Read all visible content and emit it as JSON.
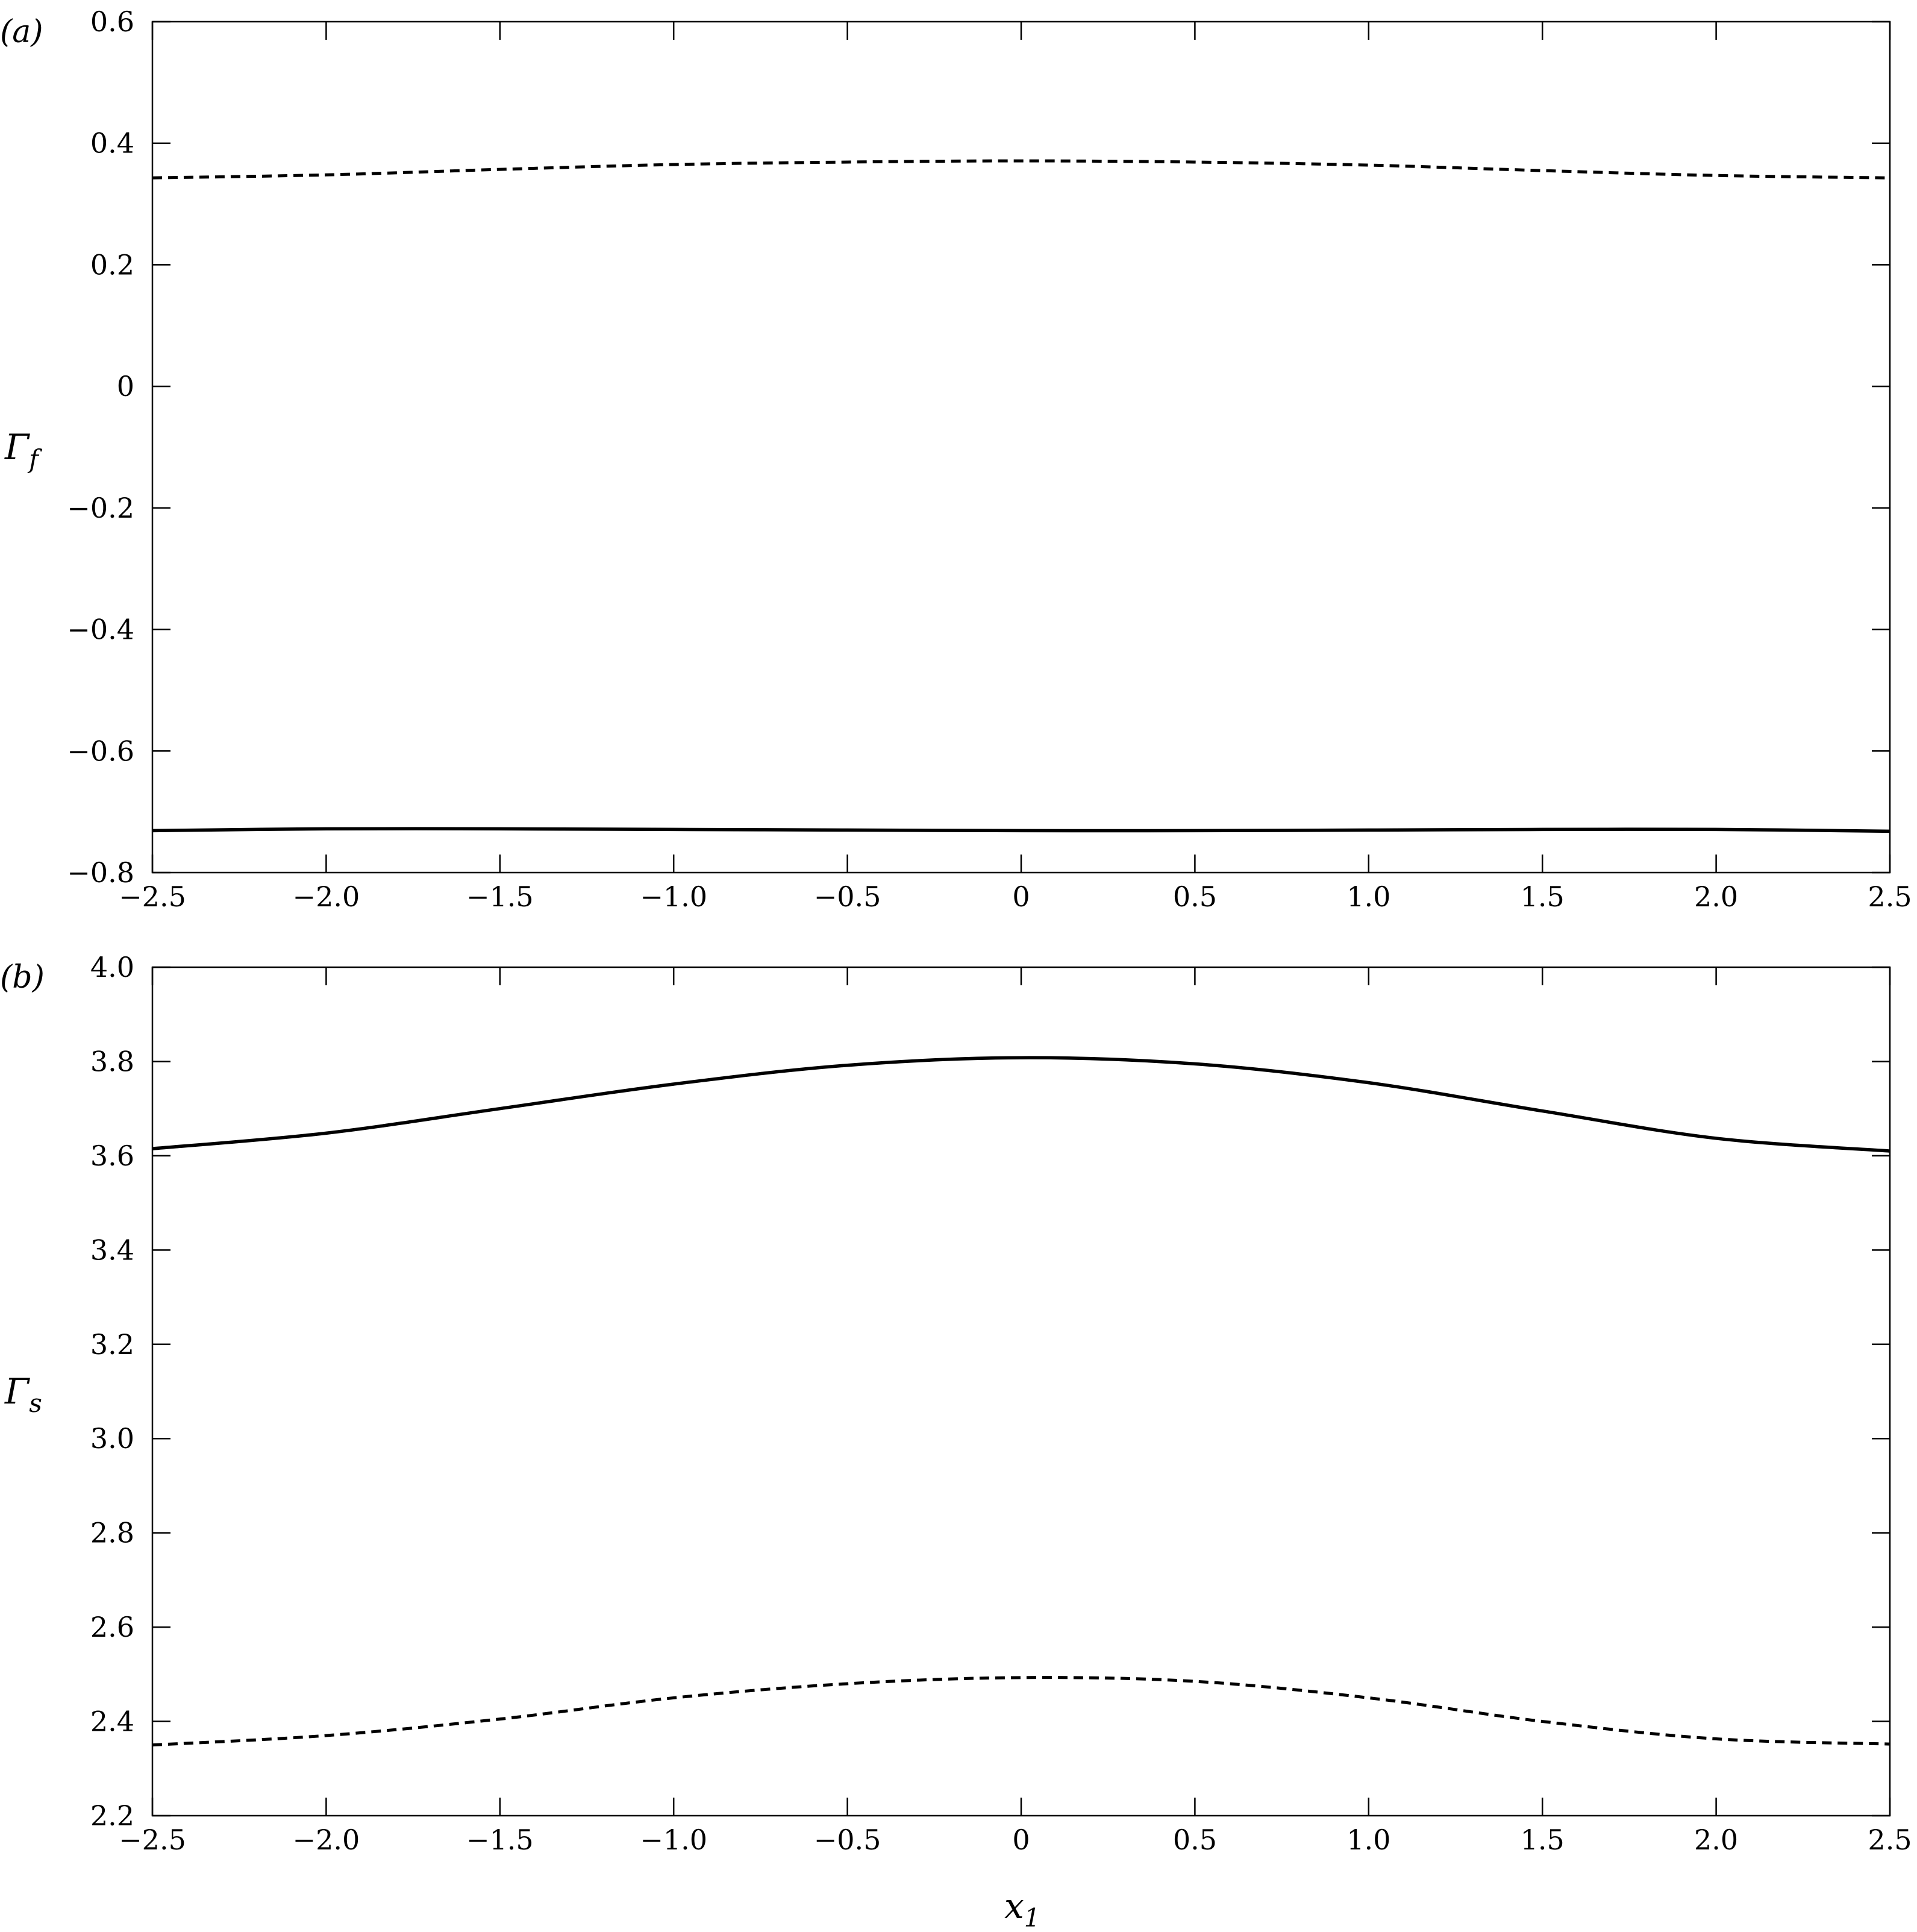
{
  "chart_data": [
    {
      "type": "line",
      "panel_label": "(a)",
      "ylabel": "Γ",
      "ylabel_sub": "f",
      "xlabel": "",
      "xlim": [
        -2.5,
        2.5
      ],
      "ylim": [
        -0.8,
        0.6
      ],
      "x_ticks": [
        -2.5,
        -2.0,
        -1.5,
        -1.0,
        -0.5,
        0,
        0.5,
        1.0,
        1.5,
        2.0,
        2.5
      ],
      "x_tick_labels": [
        "−2.5",
        "−2.0",
        "−1.5",
        "−1.0",
        "−0.5",
        "0",
        "0.5",
        "1.0",
        "1.5",
        "2.0",
        "2.5"
      ],
      "y_ticks": [
        -0.8,
        -0.6,
        -0.4,
        -0.2,
        0,
        0.2,
        0.4,
        0.6
      ],
      "y_tick_labels": [
        "−0.8",
        "−0.6",
        "−0.4",
        "−0.2",
        "0",
        "0.2",
        "0.4",
        "0.6"
      ],
      "grid": false,
      "series": [
        {
          "style": "dashed",
          "x": [
            -2.5,
            -2.0,
            -1.5,
            -1.0,
            -0.5,
            0,
            0.5,
            1.0,
            1.5,
            2.0,
            2.5
          ],
          "y": [
            0.343,
            0.348,
            0.357,
            0.365,
            0.369,
            0.371,
            0.369,
            0.364,
            0.355,
            0.347,
            0.343
          ]
        },
        {
          "style": "solid",
          "x": [
            -2.5,
            -2.0,
            -1.5,
            -1.0,
            -0.5,
            0,
            0.5,
            1.0,
            1.5,
            2.0,
            2.5
          ],
          "y": [
            -0.731,
            -0.728,
            -0.728,
            -0.729,
            -0.73,
            -0.731,
            -0.731,
            -0.73,
            -0.729,
            -0.729,
            -0.732
          ]
        }
      ]
    },
    {
      "type": "line",
      "panel_label": "(b)",
      "ylabel": "Γ",
      "ylabel_sub": "s",
      "xlabel": "x",
      "xlabel_sub": "1",
      "xlim": [
        -2.5,
        2.5
      ],
      "ylim": [
        2.2,
        4.0
      ],
      "x_ticks": [
        -2.5,
        -2.0,
        -1.5,
        -1.0,
        -0.5,
        0,
        0.5,
        1.0,
        1.5,
        2.0,
        2.5
      ],
      "x_tick_labels": [
        "−2.5",
        "−2.0",
        "−1.5",
        "−1.0",
        "−0.5",
        "0",
        "0.5",
        "1.0",
        "1.5",
        "2.0",
        "2.5"
      ],
      "y_ticks": [
        2.2,
        2.4,
        2.6,
        2.8,
        3.0,
        3.2,
        3.4,
        3.6,
        3.8,
        4.0
      ],
      "y_tick_labels": [
        "2.2",
        "2.4",
        "2.6",
        "2.8",
        "3.0",
        "3.2",
        "3.4",
        "3.6",
        "3.8",
        "4.0"
      ],
      "grid": false,
      "series": [
        {
          "style": "solid",
          "x": [
            -2.5,
            -2.0,
            -1.5,
            -1.0,
            -0.5,
            0,
            0.5,
            1.0,
            1.5,
            2.0,
            2.5
          ],
          "y": [
            3.615,
            3.648,
            3.7,
            3.752,
            3.792,
            3.808,
            3.795,
            3.755,
            3.695,
            3.637,
            3.61
          ]
        },
        {
          "style": "dashed",
          "x": [
            -2.5,
            -2.0,
            -1.5,
            -1.0,
            -0.5,
            0,
            0.5,
            1.0,
            1.5,
            2.0,
            2.5
          ],
          "y": [
            2.35,
            2.37,
            2.405,
            2.45,
            2.48,
            2.493,
            2.485,
            2.45,
            2.4,
            2.363,
            2.352
          ]
        }
      ]
    }
  ]
}
